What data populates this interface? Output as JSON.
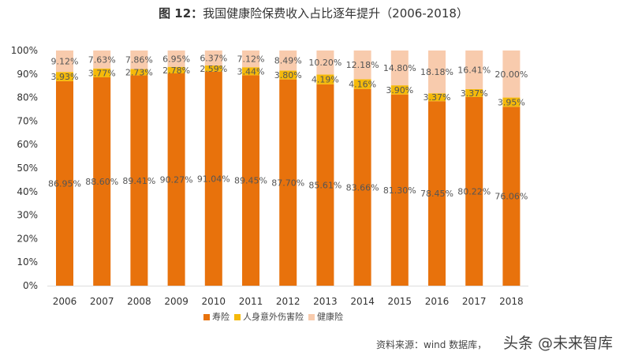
{
  "title_prefix": "图  12：",
  "title_main": "我国健康险保费收入占比逐年提升（2006-2018）",
  "source": "资料来源：wind 数据库，",
  "watermark": "头条 @未来智库",
  "chart_data": {
    "type": "bar",
    "stacked": true,
    "title": "图 12：我国健康险保费收入占比逐年提升（2006-2018）",
    "categories": [
      "2006",
      "2007",
      "2008",
      "2009",
      "2010",
      "2011",
      "2012",
      "2013",
      "2014",
      "2015",
      "2016",
      "2017",
      "2018"
    ],
    "ylim": [
      0,
      100
    ],
    "yticks": [
      "0%",
      "10%",
      "20%",
      "30%",
      "40%",
      "50%",
      "60%",
      "70%",
      "80%",
      "90%",
      "100%"
    ],
    "legend_position": "bottom-left",
    "grid": false,
    "series": [
      {
        "name": "寿险",
        "color": "#E8720C",
        "values": [
          86.95,
          88.6,
          89.41,
          90.27,
          91.04,
          89.45,
          87.7,
          85.61,
          83.66,
          81.3,
          78.45,
          80.22,
          76.06
        ]
      },
      {
        "name": "人身意外伤害险",
        "color": "#F5B90A",
        "values": [
          3.93,
          3.77,
          2.73,
          2.78,
          2.59,
          3.44,
          3.8,
          4.19,
          4.16,
          3.9,
          3.37,
          3.37,
          3.95
        ]
      },
      {
        "name": "健康险",
        "color": "#F8CBAD",
        "values": [
          9.12,
          7.63,
          7.86,
          6.95,
          6.37,
          7.12,
          8.49,
          10.2,
          12.18,
          14.8,
          18.18,
          16.41,
          20.0
        ]
      }
    ]
  }
}
